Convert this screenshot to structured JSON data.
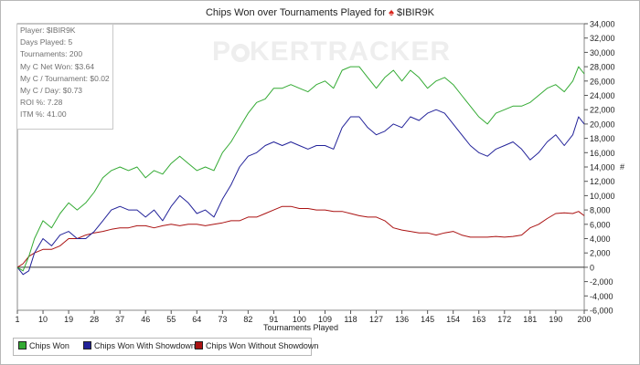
{
  "title": "Chips Won over Tournaments Played for",
  "player_name": "$IBIR9K",
  "watermark": {
    "part1": "P",
    "part2": "KERTRACKER"
  },
  "stats": [
    "Player: $IBIR9K",
    "Days Played: 5",
    "Tournaments: 200",
    "My C Net Won: $3.64",
    "My C / Tournament: $0.02",
    "My C / Day: $0.73",
    "ROI %: 7.28",
    "ITM %: 41.00"
  ],
  "colors": {
    "chips_won": "#33aa33",
    "with_showdown": "#222299",
    "without_showdown": "#aa1111",
    "spade": "#d8261c"
  },
  "chart_data": {
    "type": "line",
    "xlabel": "Tournaments Played",
    "ylabel": "",
    "y_unit_label": "#",
    "xlim": [
      1,
      200
    ],
    "ylim": [
      -6000,
      34000
    ],
    "x_ticks": [
      1,
      10,
      19,
      28,
      37,
      46,
      55,
      64,
      73,
      82,
      91,
      100,
      109,
      118,
      127,
      136,
      145,
      154,
      163,
      172,
      181,
      190,
      200
    ],
    "y_ticks": [
      -6000,
      -4000,
      -2000,
      0,
      2000,
      4000,
      6000,
      8000,
      10000,
      12000,
      14000,
      16000,
      18000,
      20000,
      22000,
      24000,
      26000,
      28000,
      30000,
      32000,
      34000
    ],
    "y_tick_labels": [
      "-6,000",
      "-4,000",
      "-2,000",
      "0",
      "2,000",
      "4,000",
      "6,000",
      "8,000",
      "10,000",
      "12,000",
      "14,000",
      "16,000",
      "18,000",
      "20,000",
      "22,000",
      "24,000",
      "26,000",
      "28,000",
      "30,000",
      "32,000",
      "34,000"
    ],
    "legend_position": "bottom-left",
    "grid": false,
    "series": [
      {
        "name": "Chips Won",
        "color": "#33aa33",
        "x": [
          1,
          3,
          5,
          7,
          10,
          13,
          16,
          19,
          22,
          25,
          28,
          31,
          34,
          37,
          40,
          43,
          46,
          49,
          52,
          55,
          58,
          61,
          64,
          67,
          70,
          73,
          76,
          79,
          82,
          85,
          88,
          91,
          94,
          97,
          100,
          103,
          106,
          109,
          112,
          115,
          118,
          121,
          124,
          127,
          130,
          133,
          136,
          139,
          142,
          145,
          148,
          151,
          154,
          157,
          160,
          163,
          166,
          169,
          172,
          175,
          178,
          181,
          184,
          187,
          190,
          193,
          196,
          198,
          200
        ],
        "y": [
          0,
          -500,
          1500,
          4000,
          6500,
          5500,
          7500,
          9000,
          8000,
          9000,
          10500,
          12500,
          13500,
          14000,
          13500,
          14000,
          12500,
          13500,
          13000,
          14500,
          15500,
          14500,
          13500,
          14000,
          13500,
          16000,
          17500,
          19500,
          21500,
          23000,
          23500,
          25000,
          25000,
          25500,
          25000,
          24500,
          25500,
          26000,
          25000,
          27500,
          28000,
          28000,
          26500,
          25000,
          26500,
          27500,
          26000,
          27500,
          26500,
          25000,
          26000,
          26500,
          25500,
          24000,
          22500,
          21000,
          20000,
          21500,
          22000,
          22500,
          22500,
          23000,
          24000,
          25000,
          25500,
          24500,
          26000,
          28000,
          27000
        ]
      },
      {
        "name": "Chips Won With Showdown",
        "color": "#222299",
        "x": [
          1,
          3,
          5,
          7,
          10,
          13,
          16,
          19,
          22,
          25,
          28,
          31,
          34,
          37,
          40,
          43,
          46,
          49,
          52,
          55,
          58,
          61,
          64,
          67,
          70,
          73,
          76,
          79,
          82,
          85,
          88,
          91,
          94,
          97,
          100,
          103,
          106,
          109,
          112,
          115,
          118,
          121,
          124,
          127,
          130,
          133,
          136,
          139,
          142,
          145,
          148,
          151,
          154,
          157,
          160,
          163,
          166,
          169,
          172,
          175,
          178,
          181,
          184,
          187,
          190,
          193,
          196,
          198,
          200
        ],
        "y": [
          0,
          -1000,
          -500,
          2000,
          4000,
          3000,
          4500,
          5000,
          4000,
          4000,
          5000,
          6500,
          8000,
          8500,
          8000,
          8000,
          7000,
          8000,
          6500,
          8500,
          10000,
          9000,
          7500,
          8000,
          7000,
          9500,
          11500,
          14000,
          15500,
          16000,
          17000,
          17500,
          17000,
          17500,
          17000,
          16500,
          17000,
          17000,
          16500,
          19500,
          21000,
          21000,
          19500,
          18500,
          19000,
          20000,
          19500,
          21000,
          20500,
          21500,
          22000,
          21500,
          20000,
          18500,
          17000,
          16000,
          15500,
          16500,
          17000,
          17500,
          16500,
          15000,
          16000,
          17500,
          18500,
          17000,
          18500,
          21000,
          20000
        ]
      },
      {
        "name": "Chips Won Without Showdown",
        "color": "#aa1111",
        "x": [
          1,
          3,
          5,
          7,
          10,
          13,
          16,
          19,
          22,
          25,
          28,
          31,
          34,
          37,
          40,
          43,
          46,
          49,
          52,
          55,
          58,
          61,
          64,
          67,
          70,
          73,
          76,
          79,
          82,
          85,
          88,
          91,
          94,
          97,
          100,
          103,
          106,
          109,
          112,
          115,
          118,
          121,
          124,
          127,
          130,
          133,
          136,
          139,
          142,
          145,
          148,
          151,
          154,
          157,
          160,
          163,
          166,
          169,
          172,
          175,
          178,
          181,
          184,
          187,
          190,
          193,
          196,
          198,
          200
        ],
        "y": [
          0,
          500,
          1500,
          2000,
          2500,
          2500,
          3000,
          4000,
          4000,
          4500,
          4800,
          5000,
          5300,
          5500,
          5500,
          5800,
          5800,
          5500,
          5800,
          6000,
          5800,
          6000,
          6000,
          5800,
          6000,
          6200,
          6500,
          6500,
          7000,
          7000,
          7500,
          8000,
          8500,
          8500,
          8200,
          8200,
          8000,
          8000,
          7800,
          7800,
          7500,
          7200,
          7000,
          7000,
          6500,
          5500,
          5200,
          5000,
          4800,
          4800,
          4500,
          4800,
          5000,
          4500,
          4200,
          4200,
          4200,
          4300,
          4200,
          4300,
          4500,
          5500,
          6000,
          6800,
          7500,
          7600,
          7500,
          7800,
          7200
        ]
      }
    ]
  }
}
